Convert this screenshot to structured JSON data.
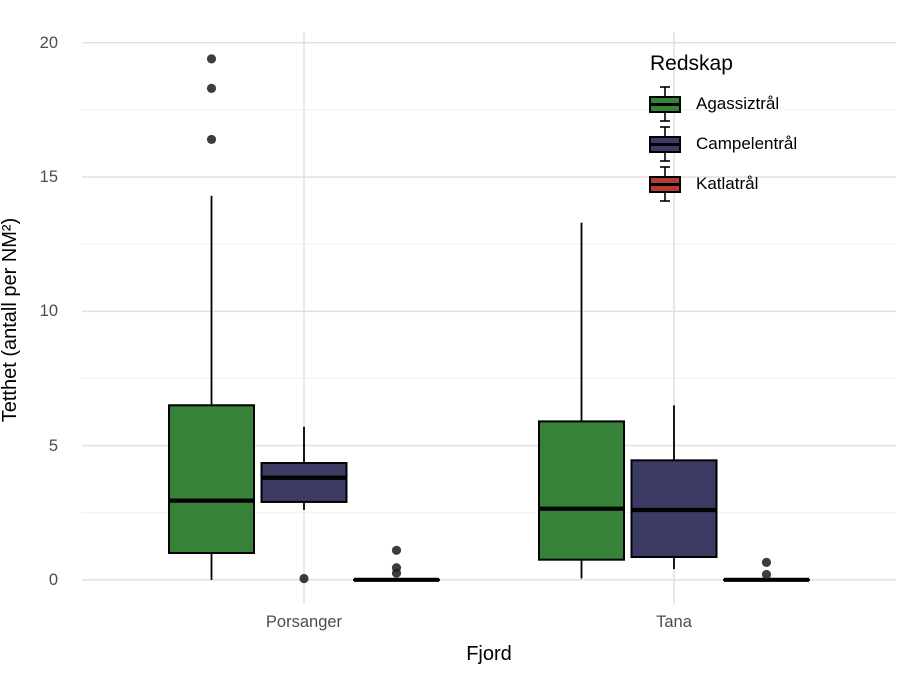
{
  "chart_data": {
    "type": "boxplot",
    "title": "",
    "xlabel": "Fjord",
    "ylabel": "Tetthet (antall per NM²)",
    "categories": [
      "Porsanger",
      "Tana"
    ],
    "y_ticks": [
      0,
      5,
      10,
      15,
      20
    ],
    "y_tick_labels": [
      "0",
      "5",
      "10",
      "15",
      "20"
    ],
    "ylim": [
      -0.9,
      20.4
    ],
    "grid": "major-and-minor",
    "legend": {
      "title": "Redskap",
      "position": "inside-top-right"
    },
    "colors": {
      "box_border": "#000000",
      "outlier": "#222222",
      "grid_major": "#e2e2e2",
      "grid_minor": "#f1f1f1",
      "axis_text": "#4d4d4d"
    },
    "series": [
      {
        "name": "Agassiztrål",
        "color": "#358238",
        "boxes": [
          {
            "category": "Porsanger",
            "min": 0,
            "q1": 1.0,
            "median": 2.95,
            "q3": 6.5,
            "max": 14.3,
            "outliers": [
              16.4,
              18.3,
              19.4
            ]
          },
          {
            "category": "Tana",
            "min": 0.05,
            "q1": 0.75,
            "median": 2.65,
            "q3": 5.9,
            "max": 13.3,
            "outliers": []
          }
        ]
      },
      {
        "name": "Campelentrål",
        "color": "#3b3b63",
        "boxes": [
          {
            "category": "Porsanger",
            "min": 2.6,
            "q1": 2.9,
            "median": 3.8,
            "q3": 4.35,
            "max": 5.7,
            "outliers": [
              0.05
            ]
          },
          {
            "category": "Tana",
            "min": 0.4,
            "q1": 0.85,
            "median": 2.6,
            "q3": 4.45,
            "max": 6.5,
            "outliers": []
          }
        ]
      },
      {
        "name": "Katlatrål",
        "color": "#b23c35",
        "boxes": [
          {
            "category": "Porsanger",
            "min": 0,
            "q1": 0,
            "median": 0,
            "q3": 0,
            "max": 0,
            "outliers": [
              1.1,
              0.45,
              0.25
            ]
          },
          {
            "category": "Tana",
            "min": 0,
            "q1": 0,
            "median": 0,
            "q3": 0,
            "max": 0,
            "outliers": [
              0.65,
              0.2
            ]
          }
        ]
      }
    ]
  }
}
